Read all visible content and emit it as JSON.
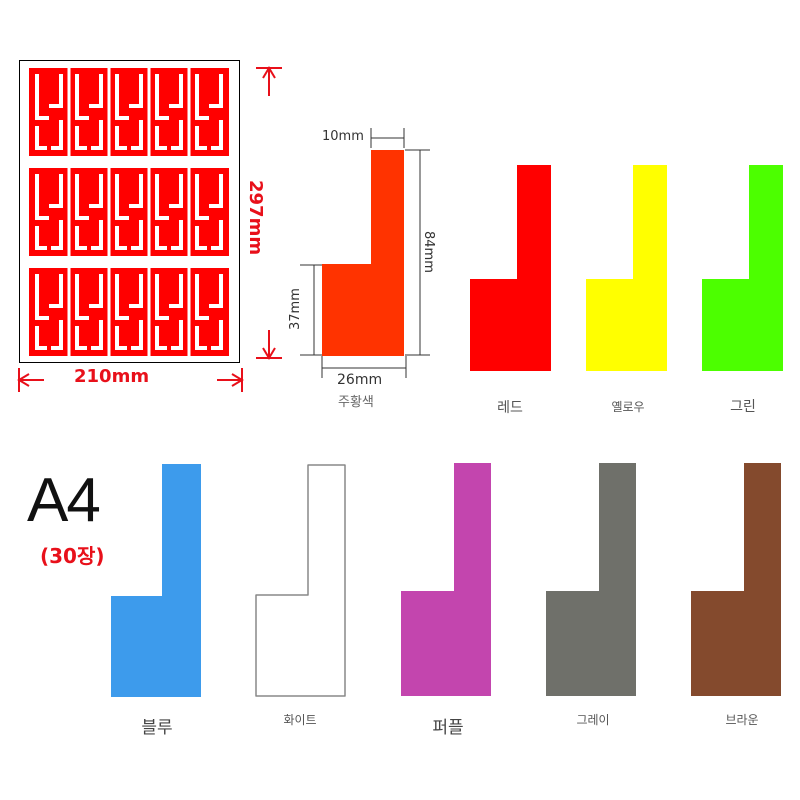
{
  "sheet": {
    "width_label": "210mm",
    "height_label": "297mm",
    "color": "#ff0000",
    "rows": 3,
    "labels_per_row": 10
  },
  "dimensions": {
    "top_width": "10mm",
    "total_height": "84mm",
    "base_height": "37mm",
    "base_width": "26mm",
    "sample_color_label": "주황색",
    "sample_color": "#ff3300"
  },
  "format": {
    "title": "A4",
    "count": "(30장)"
  },
  "colors": [
    {
      "name": "레드",
      "hex": "#ff0000"
    },
    {
      "name": "옐로우",
      "hex": "#ffff00"
    },
    {
      "name": "그린",
      "hex": "#4cff00"
    },
    {
      "name": "블루",
      "hex": "#3d9bec"
    },
    {
      "name": "화이트",
      "hex": "#ffffff"
    },
    {
      "name": "퍼플",
      "hex": "#c345ae"
    },
    {
      "name": "그레이",
      "hex": "#6f706a"
    },
    {
      "name": "브라운",
      "hex": "#844a2d"
    }
  ]
}
